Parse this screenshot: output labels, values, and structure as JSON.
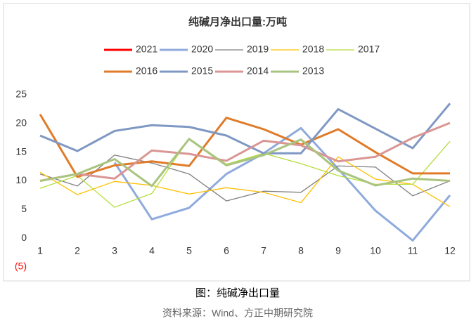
{
  "chart_data": {
    "type": "line",
    "title": "纯碱月净出口量:万吨",
    "categories": [
      "1",
      "2",
      "3",
      "4",
      "5",
      "6",
      "7",
      "8",
      "9",
      "10",
      "11",
      "12"
    ],
    "ylim": [
      -5,
      25
    ],
    "yticks": [
      {
        "value": -5,
        "label": "(5)"
      },
      0,
      5,
      10,
      15,
      20,
      25
    ],
    "grid": false,
    "legend": "top",
    "series": [
      {
        "name": "2021",
        "color": "#ff0000",
        "line_width": 3,
        "values": [
          null,
          null,
          null,
          null,
          null,
          null,
          null,
          null,
          null,
          null,
          null,
          null
        ]
      },
      {
        "name": "2020",
        "color": "#8faadc",
        "line_width": 3,
        "values": [
          null,
          null,
          13.2,
          3.3,
          5.3,
          11.2,
          14.8,
          19.2,
          12.1,
          4.8,
          -0.4,
          7.5
        ]
      },
      {
        "name": "2019",
        "color": "#7f7f7f",
        "line_width": 1.3,
        "values": [
          11.2,
          9.1,
          14.5,
          13.1,
          11.2,
          6.5,
          8.2,
          8.0,
          12.6,
          12.4,
          7.4,
          10.0
        ]
      },
      {
        "name": "2018",
        "color": "#ffc000",
        "line_width": 1.3,
        "values": [
          11.5,
          7.6,
          9.9,
          9.2,
          7.7,
          8.8,
          8.0,
          6.2,
          14.2,
          10.3,
          9.4,
          5.5
        ]
      },
      {
        "name": "2017",
        "color": "#b4de3a",
        "line_width": 1.3,
        "values": [
          8.7,
          10.9,
          5.4,
          7.8,
          17.4,
          12.9,
          14.8,
          13.0,
          10.9,
          9.4,
          9.4,
          16.9
        ]
      },
      {
        "name": "2016",
        "color": "#e07b29",
        "line_width": 3,
        "values": [
          21.6,
          10.7,
          12.7,
          13.4,
          12.6,
          21.0,
          19.0,
          16.3,
          19.0,
          15.0,
          11.3,
          11.3
        ]
      },
      {
        "name": "2015",
        "color": "#7f98c3",
        "line_width": 3,
        "values": [
          17.9,
          15.2,
          18.7,
          19.7,
          19.4,
          17.9,
          14.8,
          14.8,
          22.5,
          19.1,
          15.7,
          23.5
        ]
      },
      {
        "name": "2014",
        "color": "#d99694",
        "line_width": 3,
        "values": [
          10.0,
          11.2,
          10.4,
          15.3,
          14.7,
          13.5,
          17.0,
          16.2,
          13.4,
          14.2,
          17.5,
          20.1
        ]
      },
      {
        "name": "2013",
        "color": "#a9c47f",
        "line_width": 3,
        "values": [
          10.0,
          11.2,
          13.8,
          9.1,
          17.3,
          12.7,
          14.5,
          17.2,
          11.8,
          9.2,
          10.4,
          10.0
        ]
      }
    ]
  },
  "caption": "图：纯碱净出口量",
  "source": "资料来源：Wind、方正中期研究院"
}
